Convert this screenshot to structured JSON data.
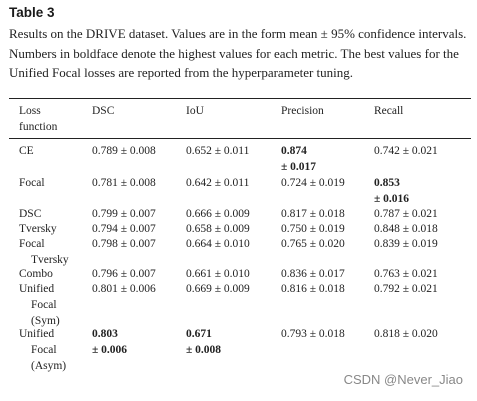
{
  "table_title": "Table 3",
  "caption": "Results on the DRIVE dataset. Values are in the form mean ± 95% confidence intervals. Numbers in boldface denote the highest values for each metric. The best values for the Unified Focal losses are reported from the hyperparameter tuning.",
  "headers": [
    "Loss function",
    "DSC",
    "IoU",
    "Precision",
    "Recall"
  ],
  "rows": [
    {
      "name": "CE",
      "dsc": "0.789 ± 0.008",
      "iou": "0.652 ± 0.011",
      "precision": "0.874 ± 0.017",
      "recall": "0.742 ± 0.021"
    },
    {
      "name": "Focal",
      "dsc": "0.781 ± 0.008",
      "iou": "0.642 ± 0.011",
      "precision": "0.724 ± 0.019",
      "recall": "0.853 ± 0.016"
    },
    {
      "name": "DSC",
      "dsc": "0.799 ± 0.007",
      "iou": "0.666 ± 0.009",
      "precision": "0.817 ± 0.018",
      "recall": "0.787 ± 0.021"
    },
    {
      "name": "Tversky",
      "dsc": "0.794 ± 0.007",
      "iou": "0.658 ± 0.009",
      "precision": "0.750 ± 0.019",
      "recall": "0.848 ± 0.018"
    },
    {
      "name": "Focal Tversky",
      "dsc": "0.798 ± 0.007",
      "iou": "0.664 ± 0.010",
      "precision": "0.765 ± 0.020",
      "recall": "0.839 ± 0.019"
    },
    {
      "name": "Combo",
      "dsc": "0.796 ± 0.007",
      "iou": "0.661 ± 0.010",
      "precision": "0.836 ± 0.017",
      "recall": "0.763 ± 0.021"
    },
    {
      "name": "Unified Focal (Sym)",
      "dsc": "0.801 ± 0.006",
      "iou": "0.669 ± 0.009",
      "precision": "0.816 ± 0.018",
      "recall": "0.792 ± 0.021"
    },
    {
      "name": "Unified Focal (Asym)",
      "dsc": "0.803 ± 0.006",
      "iou": "0.671 ± 0.008",
      "precision": "0.793 ± 0.018",
      "recall": "0.818 ± 0.020"
    }
  ],
  "watermark": "CSDN @Never_Jiao"
}
